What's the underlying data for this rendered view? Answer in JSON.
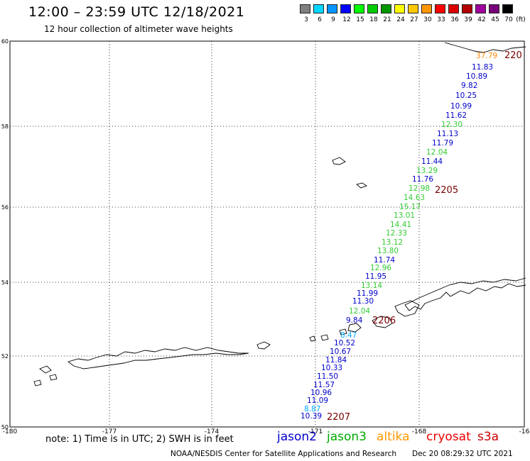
{
  "header": {
    "title": "12:00 – 23:59 UTC 12/18/2021",
    "subtitle": "12 hour collection of altimeter wave heights"
  },
  "scale": {
    "unit": "(ft)",
    "bins": [
      {
        "label": "3",
        "color": "#7f7f7f"
      },
      {
        "label": "6",
        "color": "#00d7ff"
      },
      {
        "label": "9",
        "color": "#0096ff"
      },
      {
        "label": "12",
        "color": "#0000ff"
      },
      {
        "label": "15",
        "color": "#00ff00"
      },
      {
        "label": "18",
        "color": "#00cc00"
      },
      {
        "label": "21",
        "color": "#009600"
      },
      {
        "label": "24",
        "color": "#ffff00"
      },
      {
        "label": "27",
        "color": "#ffc800"
      },
      {
        "label": "30",
        "color": "#ff9600"
      },
      {
        "label": "33",
        "color": "#ff0000"
      },
      {
        "label": "36",
        "color": "#dc0000"
      },
      {
        "label": "39",
        "color": "#b40000"
      },
      {
        "label": "42",
        "color": "#a000a0"
      },
      {
        "label": "45",
        "color": "#780078"
      },
      {
        "label": "70",
        "color": "#000000"
      }
    ]
  },
  "axes": {
    "lat_labels": [
      "60",
      "58",
      "56",
      "54",
      "52",
      "50"
    ],
    "lon_labels": [
      "-180",
      "-177",
      "-174",
      "-171",
      "-168",
      "-16"
    ]
  },
  "pass_labels": [
    {
      "text": "2207",
      "color": "#7a0000"
    },
    {
      "text": "2206",
      "color": "#7a0000"
    },
    {
      "text": "2205",
      "color": "#7a0000"
    },
    {
      "text": "220",
      "color": "#7a0000"
    }
  ],
  "track_points": [
    {
      "text": "10.39",
      "color": "#0000cc"
    },
    {
      "text": "8.87",
      "color": "#00aaff"
    },
    {
      "text": "11.09",
      "color": "#0000cc"
    },
    {
      "text": "10.96",
      "color": "#0000cc"
    },
    {
      "text": "11.57",
      "color": "#0000cc"
    },
    {
      "text": "11.50",
      "color": "#0000cc"
    },
    {
      "text": "10.33",
      "color": "#0000cc"
    },
    {
      "text": "11.84",
      "color": "#0000cc"
    },
    {
      "text": "10.67",
      "color": "#0000cc"
    },
    {
      "text": "10.52",
      "color": "#0000cc"
    },
    {
      "text": "8.47",
      "color": "#00aaff"
    },
    {
      "text": "9.84",
      "color": "#0000cc"
    },
    {
      "text": "12.04",
      "color": "#33cc33"
    },
    {
      "text": "11.30",
      "color": "#0000cc"
    },
    {
      "text": "11.99",
      "color": "#0000cc"
    },
    {
      "text": "13.14",
      "color": "#33cc33"
    },
    {
      "text": "11.95",
      "color": "#0000cc"
    },
    {
      "text": "12.96",
      "color": "#33cc33"
    },
    {
      "text": "11.74",
      "color": "#0000cc"
    },
    {
      "text": "13.80",
      "color": "#33cc33"
    },
    {
      "text": "13.12",
      "color": "#33cc33"
    },
    {
      "text": "12.33",
      "color": "#33cc33"
    },
    {
      "text": "14.41",
      "color": "#33cc33"
    },
    {
      "text": "13.01",
      "color": "#33cc33"
    },
    {
      "text": "15.17",
      "color": "#33cc33"
    },
    {
      "text": "14.63",
      "color": "#33cc33"
    },
    {
      "text": "12.98",
      "color": "#33cc33"
    },
    {
      "text": "11.76",
      "color": "#0000cc"
    },
    {
      "text": "13.29",
      "color": "#33cc33"
    },
    {
      "text": "11.44",
      "color": "#0000cc"
    },
    {
      "text": "12.04",
      "color": "#33cc33"
    },
    {
      "text": "11.79",
      "color": "#0000cc"
    },
    {
      "text": "11.13",
      "color": "#0000cc"
    },
    {
      "text": "12.30",
      "color": "#33cc33"
    },
    {
      "text": "11.62",
      "color": "#0000cc"
    },
    {
      "text": "10.99",
      "color": "#0000cc"
    },
    {
      "text": "10.25",
      "color": "#0000cc"
    },
    {
      "text": "9.82",
      "color": "#0000cc"
    },
    {
      "text": "10.89",
      "color": "#0000cc"
    },
    {
      "text": "11.83",
      "color": "#0000cc"
    },
    {
      "text": "37.79",
      "color": "#ff8800"
    }
  ],
  "footer": {
    "note": "note:  1) Time is in UTC;  2) SWH is in feet",
    "legend": [
      {
        "label": "jason2",
        "color": "#0000cc"
      },
      {
        "label": "jason3",
        "color": "#00aa00"
      },
      {
        "label": "altika",
        "color": "#ff9900"
      },
      {
        "label": "cryosat",
        "color": "#ee0000"
      },
      {
        "label": "s3a",
        "color": "#cc0000"
      }
    ],
    "credit": "NOAA/NESDIS Center for Satellite Applications and Research",
    "timestamp": "Dec 20 08:29:32 UTC 2021"
  }
}
